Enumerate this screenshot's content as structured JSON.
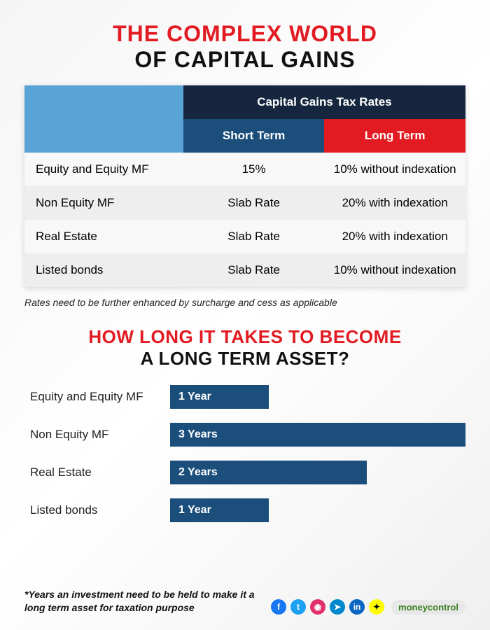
{
  "colors": {
    "red": "#e21b22",
    "black": "#111111",
    "navy": "#15263e",
    "blue_header_light": "#5aa3d6",
    "blue_header_mid": "#1b4e7a",
    "row_alt": "#eeeeee",
    "row_base": "#f8f8f8",
    "white": "#ffffff",
    "bar_fill": "#1b4e7a",
    "brand_green": "#3a7d1f"
  },
  "title": {
    "line1": "THE COMPLEX WORLD",
    "line2": "OF CAPITAL GAINS"
  },
  "table": {
    "group_header": "Capital Gains Tax Rates",
    "short_header": "Short Term",
    "long_header": "Long Term",
    "rows": [
      {
        "label": "Equity and Equity MF",
        "short": "15%",
        "long": "10% without indexation"
      },
      {
        "label": "Non Equity MF",
        "short": "Slab Rate",
        "long": "20% with indexation"
      },
      {
        "label": "Real Estate",
        "short": "Slab Rate",
        "long": "20% with indexation"
      },
      {
        "label": "Listed bonds",
        "short": "Slab Rate",
        "long": "10% without indexation"
      }
    ]
  },
  "footnote1": "Rates need to be further enhanced by surcharge and cess as applicable",
  "subtitle": {
    "line1": "HOW LONG IT TAKES TO BECOME",
    "line2": "A LONG TERM ASSET?"
  },
  "bars": {
    "max_years": 3,
    "items": [
      {
        "label": "Equity and Equity MF",
        "years": 1,
        "text": "1 Year"
      },
      {
        "label": "Non Equity MF",
        "years": 3,
        "text": "3 Years"
      },
      {
        "label": "Real Estate",
        "years": 2,
        "text": "2 Years"
      },
      {
        "label": "Listed bonds",
        "years": 1,
        "text": "1 Year"
      }
    ]
  },
  "footnote2": "*Years an investment need to be held to make it a long term asset for taxation purpose",
  "socials": {
    "icons": [
      {
        "name": "facebook-icon",
        "glyph": "f",
        "bg": "#1877f2"
      },
      {
        "name": "twitter-icon",
        "glyph": "t",
        "bg": "#1da1f2"
      },
      {
        "name": "instagram-icon",
        "glyph": "◉",
        "bg": "#e1306c"
      },
      {
        "name": "telegram-icon",
        "glyph": "➤",
        "bg": "#0088cc"
      },
      {
        "name": "linkedin-icon",
        "glyph": "in",
        "bg": "#0a66c2"
      },
      {
        "name": "snapchat-icon",
        "glyph": "✦",
        "bg": "#fffc00"
      }
    ],
    "brand": "moneycontrol"
  }
}
